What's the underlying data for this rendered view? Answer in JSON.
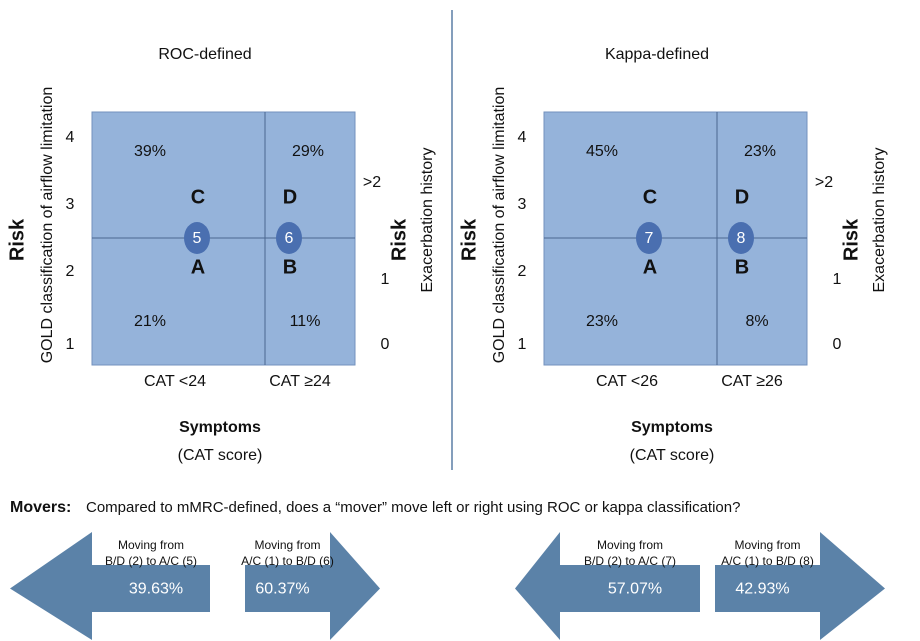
{
  "panels": [
    {
      "title": "ROC-defined",
      "y_label_main": "Risk",
      "y_label": "GOLD classification of airflow limitation",
      "y_ticks": [
        "4",
        "3",
        "2",
        "1"
      ],
      "y2_label_main": "Risk",
      "y2_label": "Exacerbation history",
      "y2_ticks": [
        ">2",
        "1",
        "0"
      ],
      "x_ticks": [
        "CAT <24",
        "CAT ≥24"
      ],
      "x_label": "Symptoms",
      "x_sublabel": "(CAT score)",
      "percentages": [
        "39%",
        "29%",
        "21%",
        "11%"
      ],
      "letters": [
        "C",
        "D",
        "A",
        "B"
      ],
      "mover_groups": [
        "5",
        "6"
      ]
    },
    {
      "title": "Kappa-defined",
      "y_label_main": "Risk",
      "y_label": "GOLD classification of airflow limitation",
      "y_ticks": [
        "4",
        "3",
        "2",
        "1"
      ],
      "y2_label_main": "Risk",
      "y2_label": "Exacerbation history",
      "y2_ticks": [
        ">2",
        "1",
        "0"
      ],
      "x_ticks": [
        "CAT <26",
        "CAT ≥26"
      ],
      "x_label": "Symptoms",
      "x_sublabel": "(CAT score)",
      "percentages": [
        "45%",
        "23%",
        "23%",
        "8%"
      ],
      "letters": [
        "C",
        "D",
        "A",
        "B"
      ],
      "mover_groups": [
        "7",
        "8"
      ]
    }
  ],
  "movers": {
    "label": "Movers:",
    "text": "Compared to mMRC-defined, does a “mover” move left or right using ROC or kappa classification?"
  },
  "arrows": [
    {
      "caption_1": "Moving from",
      "caption_2": "B/D (2) to A/C (5)",
      "value": "39.63%"
    },
    {
      "caption_1": "Moving from",
      "caption_2": "A/C (1) to B/D (6)",
      "value": "60.37%"
    },
    {
      "caption_1": "Moving from",
      "caption_2": "B/D (2) to A/C (7)",
      "value": "57.07%"
    },
    {
      "caption_1": "Moving from",
      "caption_2": "A/C (1) to B/D (8)",
      "value": "42.93%"
    }
  ]
}
